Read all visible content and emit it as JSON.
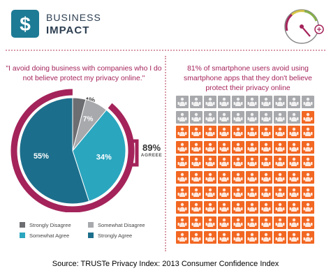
{
  "header": {
    "brand_line1": "BUSINESS",
    "brand_line2": "IMPACT",
    "logo_icon": "dollar-sign-icon",
    "gauge_icon": "gauge-meter-icon"
  },
  "colors": {
    "strongly_disagree": "#6d6e71",
    "somewhat_disagree": "#a7a9ac",
    "somewhat_agree": "#2ba6bf",
    "strongly_agree": "#1c6f8c",
    "accent": "#a4235a",
    "grid_avoid": "#f26722",
    "grid_other": "#a7a9ac",
    "logo": "#1e7b95"
  },
  "left_panel": {
    "quote": "\"I avoid doing business with companies who I do not believe protect my privacy online.\"",
    "agree_total": "89%",
    "agree_label": "AGREEE"
  },
  "right_panel": {
    "statement": "81% of smartphone users avoid using smartphone apps that they don't believe protect their privacy online"
  },
  "chart_data": [
    {
      "type": "pie",
      "title": "\"I avoid doing business with companies who I do not believe protect my privacy online.\"",
      "categories": [
        "Strongly Disagree",
        "Somewhat Disagree",
        "Somewhat Agree",
        "Strongly Agree"
      ],
      "values": [
        4,
        7,
        34,
        55
      ],
      "labels": [
        "4%",
        "7%",
        "34%",
        "55%"
      ],
      "annotation": "89% AGREEE",
      "legend": "bottom"
    },
    {
      "type": "table",
      "title": "81% of smartphone users avoid using smartphone apps that they don't believe protect their privacy online",
      "rows": 10,
      "cols": 10,
      "highlighted_percent": 81,
      "icon": "smartphone-user-icon"
    }
  ],
  "source": "Source: TRUSTe Privacy Index: 2013 Consumer Confidence Index"
}
